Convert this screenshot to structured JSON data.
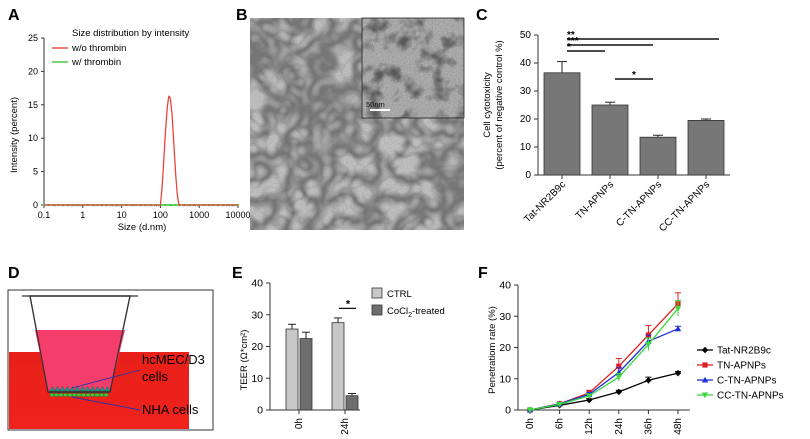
{
  "panels": {
    "A": {
      "letter": "A",
      "chart_data": {
        "type": "line",
        "title": "Size distribution by intensity",
        "xlabel": "Size (d.nm)",
        "ylabel": "Intensity (percent)",
        "xscale": "log",
        "xlim": [
          0.1,
          10000
        ],
        "ylim": [
          0,
          25
        ],
        "xticks": [
          "0.1",
          "1",
          "10",
          "100",
          "1000",
          "10000"
        ],
        "yticks": [
          "0",
          "5",
          "10",
          "15",
          "20",
          "25"
        ],
        "legend_position": "top-left",
        "series": [
          {
            "name": "w/o thrombin",
            "color": "#e8453c",
            "x": [
              0.1,
              100,
              110,
              120,
              135,
              150,
              165,
              180,
              200,
              220,
              245,
              270,
              300,
              10000
            ],
            "y": [
              0,
              0,
              2.5,
              6,
              11,
              14.5,
              16.3,
              16,
              13.5,
              9.5,
              5,
              1.8,
              0,
              0
            ]
          },
          {
            "name": "w/ thrombin",
            "color": "#3cc63c",
            "x": [
              0.1,
              10000
            ],
            "y": [
              0,
              0
            ]
          }
        ]
      }
    },
    "B": {
      "letter": "B",
      "scalebar_label": "50nm"
    },
    "C": {
      "letter": "C",
      "chart_data": {
        "type": "bar",
        "categories": [
          "Tat-NR2B9c",
          "TN-APNPs",
          "C-TN-APNPs",
          "CC-TN-APNPs"
        ],
        "values": [
          36.5,
          25,
          13.5,
          19.5
        ],
        "errors": [
          4,
          1,
          0.7,
          0.5
        ],
        "ylabel": "Cell cytotoxicity",
        "ylabel2": "(percent of negative control %)",
        "ylim": [
          0,
          50
        ],
        "yticks": [
          "0",
          "10",
          "20",
          "30",
          "40",
          "50"
        ],
        "bar_color": "#777777",
        "significance": [
          {
            "from": 0,
            "to": 3,
            "label": "**"
          },
          {
            "from": 0,
            "to": 2,
            "label": "***"
          },
          {
            "from": 0,
            "to": 1,
            "label": "*"
          },
          {
            "from": 1,
            "to": 2,
            "label": "*"
          }
        ]
      }
    },
    "D": {
      "letter": "D",
      "label_top_1": "hcMEC/D3",
      "label_top_2": "cells",
      "label_bottom": "NHA cells"
    },
    "E": {
      "letter": "E",
      "chart_data": {
        "type": "bar",
        "categories": [
          "0h",
          "24h"
        ],
        "series": [
          {
            "name": "CTRL",
            "values": [
              25.5,
              27.5
            ],
            "errors": [
              1.5,
              1.5
            ],
            "color": "#c8c8c8"
          },
          {
            "name": "CoCl",
            "values": [
              22.5,
              4.5
            ],
            "errors": [
              2,
              0.7
            ],
            "color": "#6e6e6e"
          }
        ],
        "legend_ctrl": "CTRL",
        "legend_cocl_main": "CoCl",
        "legend_cocl_sub": "2",
        "legend_cocl_tail": "-treated",
        "ylabel": "TEER (Ω*cm²)",
        "ylim": [
          0,
          40
        ],
        "yticks": [
          "0",
          "10",
          "20",
          "30",
          "40"
        ],
        "significance_label": "*",
        "legend_position": "top-right"
      }
    },
    "F": {
      "letter": "F",
      "chart_data": {
        "type": "line",
        "categories": [
          "0h",
          "6h",
          "12h",
          "24h",
          "36h",
          "48h"
        ],
        "ylabel": "Penetratiom rate (%)",
        "ylim": [
          0,
          40
        ],
        "yticks": [
          "0",
          "10",
          "20",
          "30",
          "40"
        ],
        "legend_position": "right",
        "series": [
          {
            "name": "Tat-NR2B9c",
            "color": "#000000",
            "marker": "diamond",
            "values": [
              0,
              1.5,
              3.2,
              5.8,
              9.5,
              11.8
            ],
            "errors": [
              0.3,
              0.3,
              0.4,
              0.5,
              1,
              0.5
            ]
          },
          {
            "name": "TN-APNPs",
            "color": "#e02020",
            "marker": "square",
            "values": [
              0,
              2,
              5.5,
              14,
              24,
              34
            ],
            "errors": [
              0.3,
              0.4,
              0.8,
              2.5,
              3,
              3.5
            ]
          },
          {
            "name": "C-TN-APNPs",
            "color": "#2030d8",
            "marker": "triangle",
            "values": [
              0,
              2,
              5,
              12,
              22,
              26
            ],
            "errors": [
              0.3,
              0.4,
              0.6,
              1.5,
              2,
              0.8
            ]
          },
          {
            "name": "CC-TN-APNPs",
            "color": "#3cd83c",
            "marker": "triangle-down",
            "values": [
              0,
              1.8,
              4.5,
              10.5,
              21,
              32.5
            ],
            "errors": [
              0.3,
              0.3,
              0.6,
              1.2,
              2,
              2.5
            ]
          }
        ]
      }
    }
  }
}
